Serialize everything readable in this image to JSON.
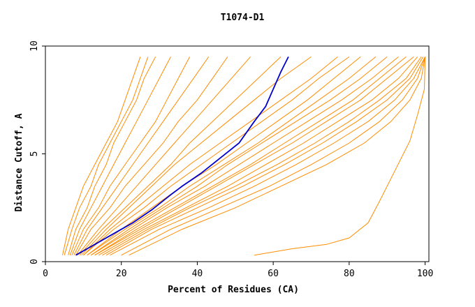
{
  "chart_data": {
    "type": "line",
    "title": "T1074-D1",
    "xlabel": "Percent of Residues (CA)",
    "ylabel": "Distance Cutoff, A",
    "xlim": [
      0,
      101
    ],
    "ylim": [
      0,
      10
    ],
    "xticks": [
      0,
      20,
      40,
      60,
      80,
      100
    ],
    "yticks": [
      0,
      5,
      10
    ],
    "x_tick_labels": [
      "0",
      "20",
      "40",
      "60",
      "80",
      "100"
    ],
    "y_tick_labels": [
      "0",
      "5",
      "10"
    ],
    "grid": false,
    "legend": "none",
    "colors": {
      "background_series": "#ff8c00",
      "highlight_series": "#0000cc"
    },
    "background_series": [
      {
        "x": [
          4.5,
          6,
          8,
          10,
          13,
          16,
          19,
          21,
          23,
          25
        ],
        "y": [
          0.3,
          1.5,
          2.5,
          3.5,
          4.5,
          5.5,
          6.5,
          7.5,
          8.5,
          9.5
        ]
      },
      {
        "x": [
          5,
          7,
          9,
          12,
          14,
          17,
          20,
          23,
          25,
          27
        ],
        "y": [
          0.3,
          1.5,
          2.5,
          3.5,
          4.5,
          5.5,
          6.5,
          7.5,
          8.5,
          9.5
        ]
      },
      {
        "x": [
          6,
          8,
          11,
          13,
          16,
          18,
          21,
          24,
          26,
          29
        ],
        "y": [
          0.3,
          1.5,
          2.5,
          3.5,
          4.5,
          5.5,
          6.5,
          7.5,
          8.5,
          9.5
        ]
      },
      {
        "x": [
          6.5,
          9,
          12,
          15,
          18,
          21,
          24,
          27,
          30,
          33
        ],
        "y": [
          0.3,
          1.5,
          2.5,
          3.5,
          4.5,
          5.5,
          6.5,
          7.5,
          8.5,
          9.5
        ]
      },
      {
        "x": [
          7,
          10,
          14,
          17,
          21,
          25,
          29,
          32,
          35,
          38
        ],
        "y": [
          0.3,
          1.5,
          2.5,
          3.5,
          4.5,
          5.5,
          6.5,
          7.5,
          8.5,
          9.5
        ]
      },
      {
        "x": [
          7.5,
          11,
          15,
          19,
          23,
          27,
          31,
          35,
          39,
          43
        ],
        "y": [
          0.3,
          1.5,
          2.5,
          3.5,
          4.5,
          5.5,
          6.5,
          7.5,
          8.5,
          9.5
        ]
      },
      {
        "x": [
          8,
          12,
          17,
          21,
          26,
          31,
          35,
          40,
          44,
          48
        ],
        "y": [
          0.3,
          1.5,
          2.5,
          3.5,
          4.5,
          5.5,
          6.5,
          7.5,
          8.5,
          9.5
        ]
      },
      {
        "x": [
          8.5,
          14,
          19,
          24,
          29,
          34,
          39,
          44,
          49,
          54
        ],
        "y": [
          0.3,
          1.5,
          2.5,
          3.5,
          4.5,
          5.5,
          6.5,
          7.5,
          8.5,
          9.5
        ]
      },
      {
        "x": [
          9,
          15,
          21,
          27,
          33,
          38,
          44,
          50,
          56,
          62
        ],
        "y": [
          0.3,
          1.5,
          2.5,
          3.5,
          4.5,
          5.5,
          6.5,
          7.5,
          8.5,
          9.5
        ]
      },
      {
        "x": [
          9.5,
          16,
          22,
          28,
          34,
          41,
          48,
          55,
          62,
          70
        ],
        "y": [
          0.3,
          1.5,
          2.5,
          3.5,
          4.5,
          5.5,
          6.5,
          7.5,
          8.5,
          9.5
        ]
      },
      {
        "x": [
          10,
          17,
          24,
          31,
          38,
          46,
          54,
          62,
          70,
          77
        ],
        "y": [
          0.3,
          1.5,
          2.5,
          3.5,
          4.5,
          5.5,
          6.5,
          7.5,
          8.5,
          9.5
        ]
      },
      {
        "x": [
          10,
          18,
          26,
          33,
          41,
          49,
          57,
          65,
          72,
          80
        ],
        "y": [
          0.3,
          1.5,
          2.5,
          3.5,
          4.5,
          5.5,
          6.5,
          7.5,
          8.5,
          9.5
        ]
      },
      {
        "x": [
          11,
          20,
          28,
          36,
          45,
          53,
          61,
          69,
          76,
          83
        ],
        "y": [
          0.3,
          1.5,
          2.5,
          3.5,
          4.5,
          5.5,
          6.5,
          7.5,
          8.5,
          9.5
        ]
      },
      {
        "x": [
          11,
          21,
          30,
          38,
          47,
          56,
          64,
          72,
          80,
          87
        ],
        "y": [
          0.3,
          1.5,
          2.5,
          3.5,
          4.5,
          5.5,
          6.5,
          7.5,
          8.5,
          9.5
        ]
      },
      {
        "x": [
          12,
          22,
          31,
          40,
          48,
          57,
          66,
          75,
          83,
          90
        ],
        "y": [
          0.3,
          1.5,
          2.5,
          3.5,
          4.5,
          5.5,
          6.5,
          7.5,
          8.5,
          9.5
        ]
      },
      {
        "x": [
          12,
          23,
          32,
          42,
          51,
          60,
          69,
          78,
          86,
          93
        ],
        "y": [
          0.3,
          1.5,
          2.5,
          3.5,
          4.5,
          5.5,
          6.5,
          7.5,
          8.5,
          9.5
        ]
      },
      {
        "x": [
          13,
          24,
          34,
          44,
          54,
          63,
          72,
          81,
          88,
          95
        ],
        "y": [
          0.3,
          1.5,
          2.5,
          3.5,
          4.5,
          5.5,
          6.5,
          7.5,
          8.5,
          9.5
        ]
      },
      {
        "x": [
          13,
          25,
          35,
          45,
          55,
          65,
          74,
          83,
          90,
          97
        ],
        "y": [
          0.3,
          1.5,
          2.5,
          3.5,
          4.5,
          5.5,
          6.5,
          7.5,
          8.5,
          9.5
        ]
      },
      {
        "x": [
          14,
          26,
          37,
          48,
          58,
          68,
          77,
          86,
          93,
          98
        ],
        "y": [
          0.3,
          1.5,
          2.5,
          3.5,
          4.5,
          5.5,
          6.5,
          7.5,
          8.5,
          9.5
        ]
      },
      {
        "x": [
          15,
          27,
          38,
          50,
          61,
          71,
          80,
          88,
          95,
          99
        ],
        "y": [
          0.3,
          1.5,
          2.5,
          3.5,
          4.5,
          5.5,
          6.5,
          7.5,
          8.5,
          9.5
        ]
      },
      {
        "x": [
          16,
          28,
          40,
          52,
          63,
          73,
          82,
          90,
          96,
          99.5
        ],
        "y": [
          0.3,
          1.5,
          2.5,
          3.5,
          4.5,
          5.5,
          6.5,
          7.5,
          8.5,
          9.5
        ]
      },
      {
        "x": [
          17,
          30,
          43,
          55,
          66,
          76,
          85,
          92,
          97,
          100
        ],
        "y": [
          0.3,
          1.5,
          2.5,
          3.5,
          4.5,
          5.5,
          6.5,
          7.5,
          8.5,
          9.5
        ]
      },
      {
        "x": [
          20,
          33,
          46,
          59,
          70,
          80,
          88,
          94,
          98,
          100
        ],
        "y": [
          0.3,
          1.5,
          2.5,
          3.5,
          4.5,
          5.5,
          6.5,
          7.5,
          8.5,
          9.5
        ]
      },
      {
        "x": [
          22,
          36,
          50,
          62,
          74,
          84,
          91,
          96,
          99,
          100
        ],
        "y": [
          0.3,
          1.5,
          2.5,
          3.5,
          4.5,
          5.5,
          6.5,
          7.5,
          8.5,
          9.5
        ]
      },
      {
        "x": [
          55,
          65,
          74,
          80,
          85,
          88,
          92,
          96,
          98,
          99.8,
          100
        ],
        "y": [
          0.3,
          0.6,
          0.8,
          1.1,
          1.8,
          2.8,
          4.2,
          5.6,
          6.8,
          8.0,
          9.5
        ]
      }
    ],
    "highlight_series": {
      "x": [
        8,
        13,
        18,
        23,
        28,
        33,
        36,
        41,
        46,
        51,
        55,
        58,
        60,
        62,
        64
      ],
      "y": [
        0.3,
        0.8,
        1.3,
        1.8,
        2.4,
        3.1,
        3.5,
        4.1,
        4.8,
        5.5,
        6.5,
        7.2,
        8.0,
        8.8,
        9.5
      ]
    }
  }
}
